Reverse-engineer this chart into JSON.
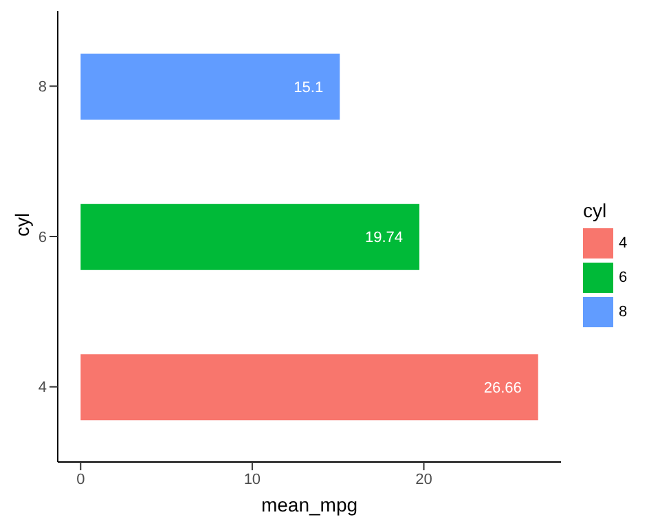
{
  "chart_data": {
    "type": "bar",
    "orientation": "horizontal",
    "stacked": true,
    "categories": [
      "8",
      "6",
      "4"
    ],
    "series": [
      {
        "name": "4",
        "color": "#f8766d",
        "values": [
          null,
          null,
          26.66
        ]
      },
      {
        "name": "6",
        "color": "#00ba38",
        "values": [
          null,
          19.74,
          null
        ]
      },
      {
        "name": "8",
        "color": "#619cff",
        "values": [
          15.1,
          null,
          null
        ]
      }
    ],
    "xlim": [
      -1.333,
      27.993
    ],
    "xticks": [
      0,
      10,
      20
    ],
    "xlabel": "mean_mpg",
    "ylabel": "cyl",
    "legend_title": "cyl",
    "legend": "right",
    "data_labels": true
  }
}
